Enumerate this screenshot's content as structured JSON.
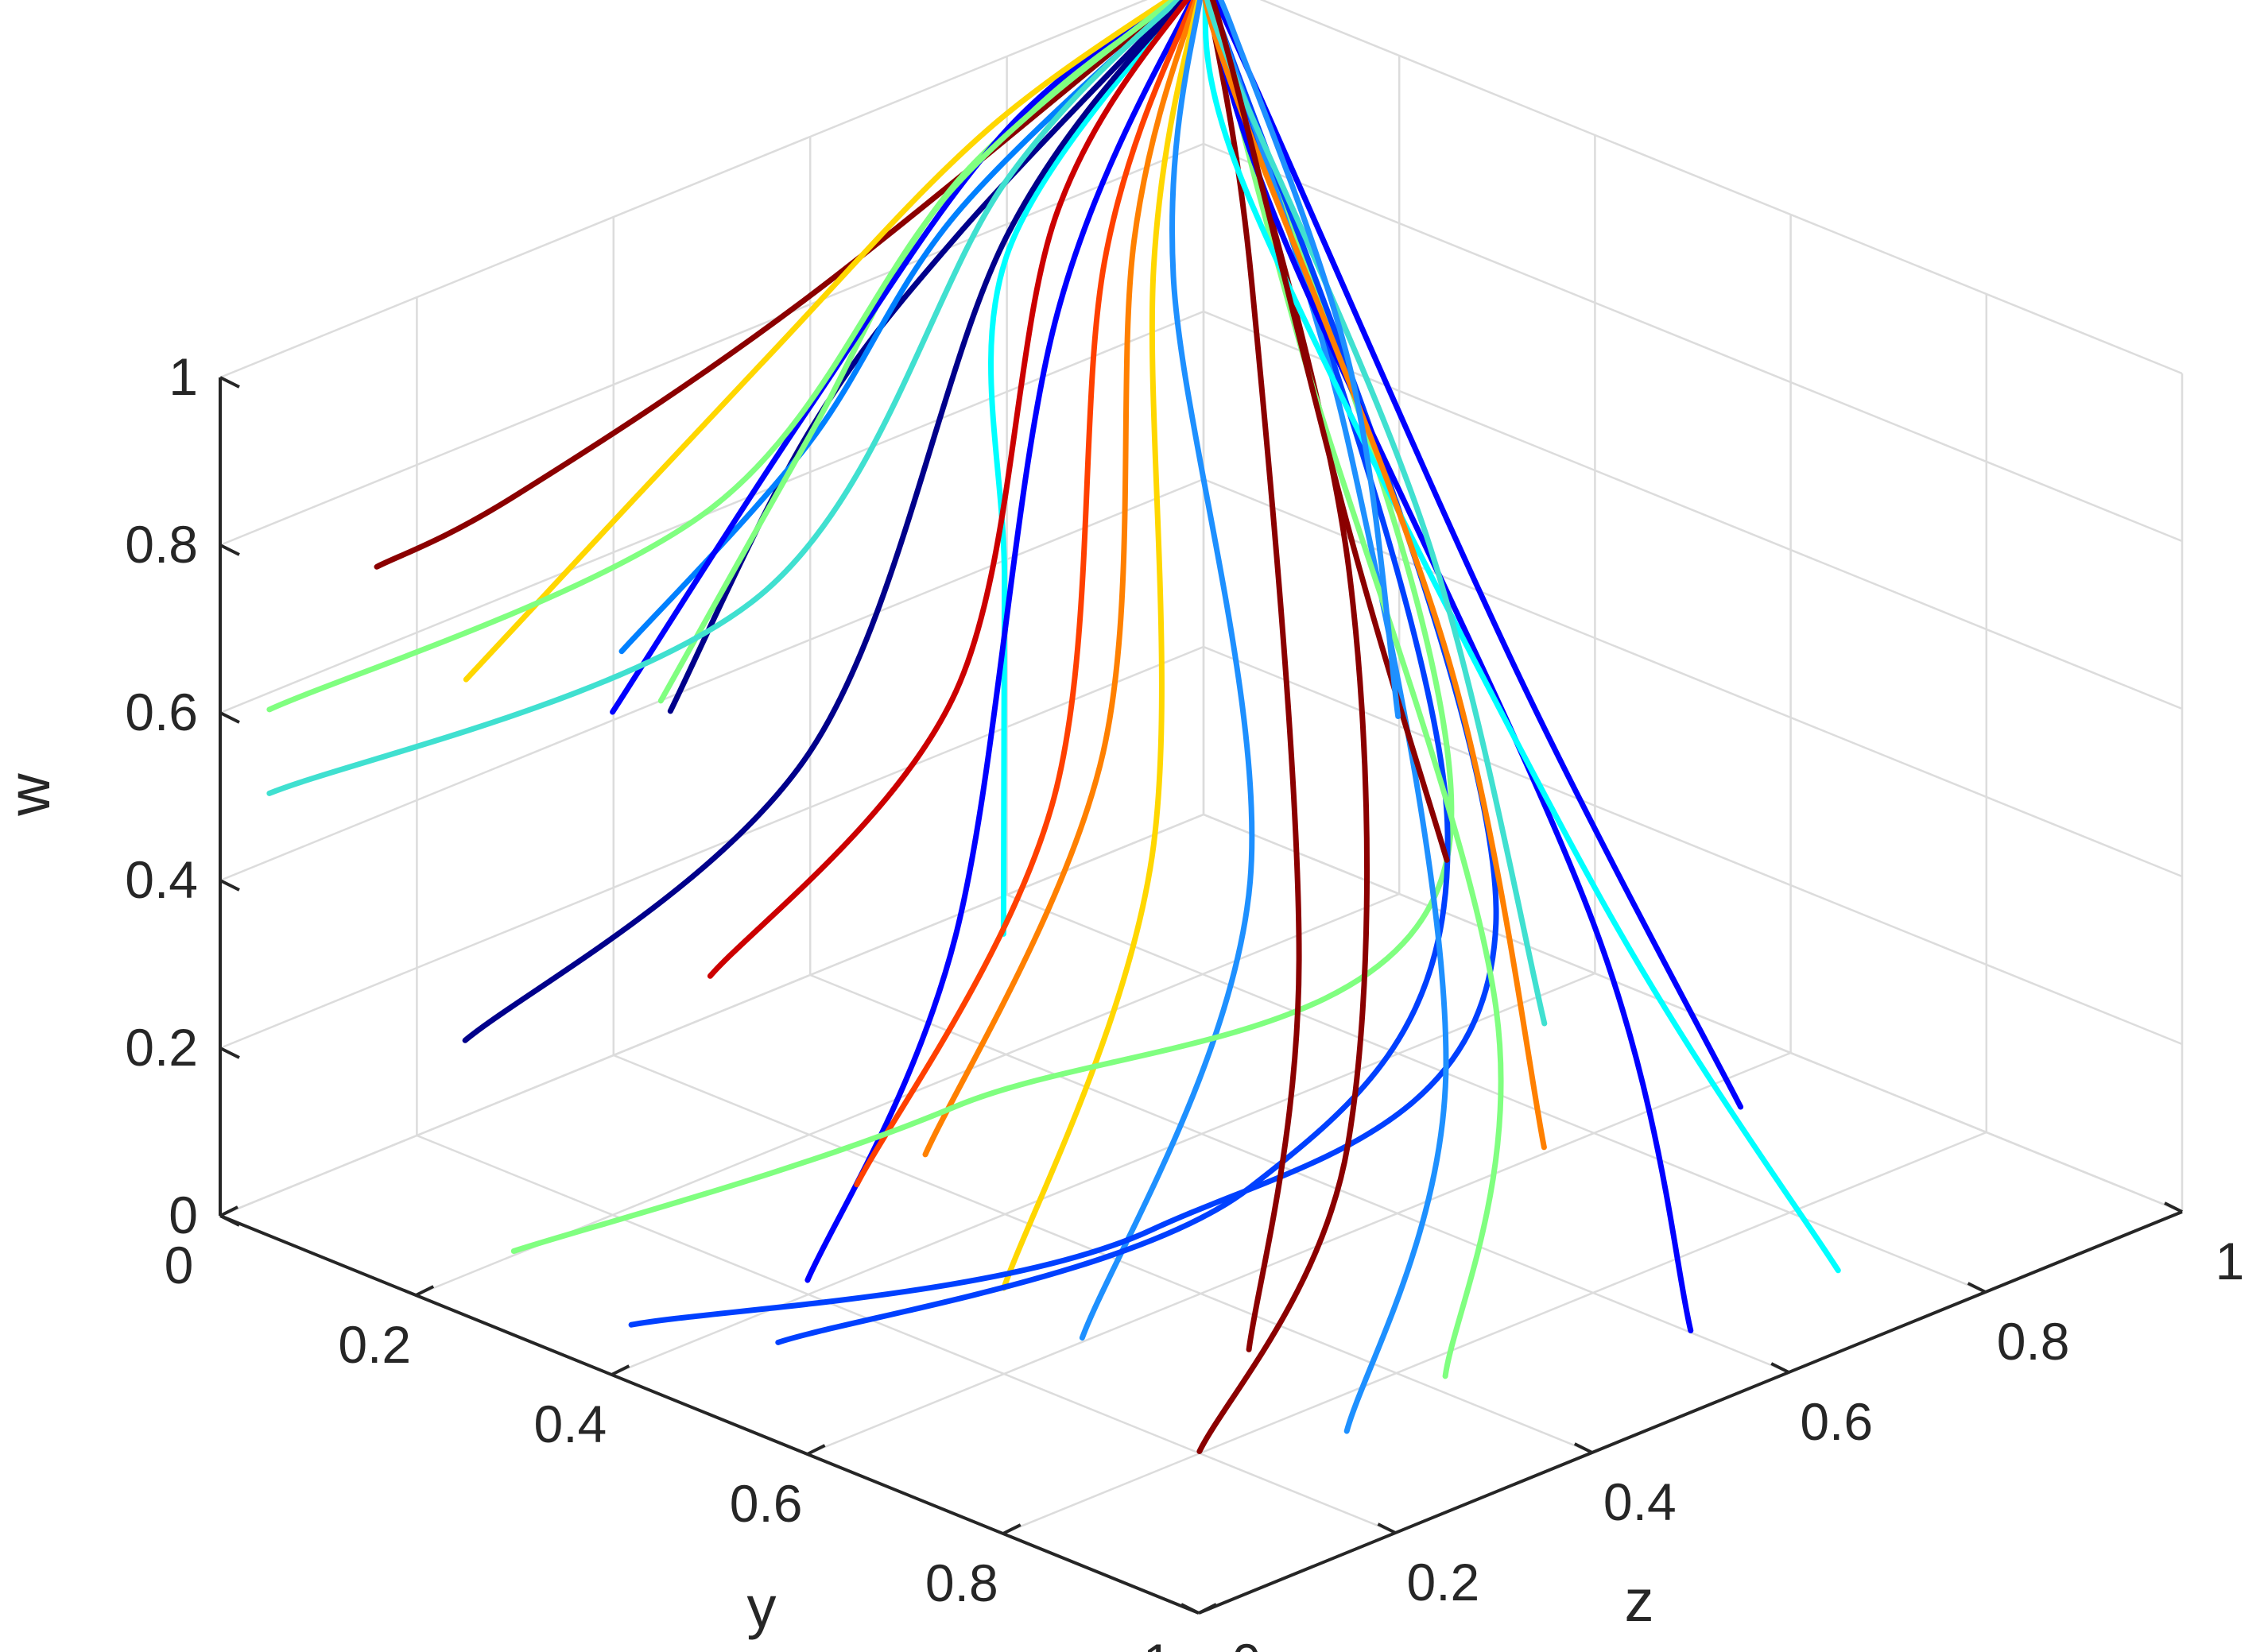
{
  "chart_data": {
    "type": "line",
    "subtype": "3d-trajectories",
    "title": "",
    "xlabel": "y",
    "ylabel": "z",
    "zlabel": "w",
    "xlim": [
      0,
      1
    ],
    "ylim": [
      0,
      1
    ],
    "zlim": [
      0,
      1
    ],
    "grid": true,
    "legend": "none",
    "x_ticks": [
      "0",
      "0.2",
      "0.4",
      "0.6",
      "0.8",
      "1"
    ],
    "y_ticks": [
      "0",
      "0.2",
      "0.4",
      "0.6",
      "0.8",
      "1"
    ],
    "z_ticks": [
      "0",
      "0.2",
      "0.4",
      "0.6",
      "0.8",
      "1"
    ],
    "colormap": "jet",
    "attractor": {
      "y": 0,
      "z": 1,
      "w": 1
    },
    "series": [
      {
        "color": "#8b0000",
        "points": [
          [
            0.16,
            0.0,
            0.85
          ],
          [
            0.3,
            0.0,
            1.0
          ],
          [
            0.2,
            0.4,
            1.0
          ],
          [
            0.0,
            1.0,
            1.0
          ]
        ]
      },
      {
        "color": "#00008b",
        "points": [
          [
            0.46,
            0.0,
            0.82
          ],
          [
            0.35,
            0.25,
            0.98
          ],
          [
            0.2,
            0.55,
            1.0
          ],
          [
            0.0,
            1.0,
            1.0
          ]
        ]
      },
      {
        "color": "#0080ff",
        "points": [
          [
            0.36,
            0.05,
            0.82
          ],
          [
            0.3,
            0.3,
            0.92
          ],
          [
            0.15,
            0.6,
            0.98
          ],
          [
            0.0,
            1.0,
            1.0
          ]
        ]
      },
      {
        "color": "#80ff80",
        "points": [
          [
            0.4,
            0.05,
            0.78
          ],
          [
            0.25,
            0.35,
            0.88
          ],
          [
            0.1,
            0.65,
            0.97
          ],
          [
            0.0,
            1.0,
            1.0
          ]
        ]
      },
      {
        "color": "#00ffff",
        "points": [
          [
            0.7,
            0.1,
            0.62
          ],
          [
            0.5,
            0.3,
            0.85
          ],
          [
            0.2,
            0.6,
            0.95
          ],
          [
            0.0,
            1.0,
            1.0
          ]
        ]
      },
      {
        "color": "#0000ff",
        "points": [
          [
            0.2,
            0.2,
            0.6
          ],
          [
            0.15,
            0.45,
            0.82
          ],
          [
            0.05,
            0.75,
            0.96
          ],
          [
            0.0,
            1.0,
            1.0
          ]
        ]
      },
      {
        "color": "#ffd700",
        "points": [
          [
            0.0,
            0.25,
            0.52
          ],
          [
            0.05,
            0.5,
            0.8
          ],
          [
            0.03,
            0.75,
            0.95
          ],
          [
            0.0,
            1.0,
            1.0
          ]
        ]
      },
      {
        "color": "#80ff80",
        "points": [
          [
            0.0,
            0.05,
            0.58
          ],
          [
            0.1,
            0.4,
            0.7
          ],
          [
            0.05,
            0.7,
            0.92
          ],
          [
            0.0,
            1.0,
            1.0
          ]
        ]
      },
      {
        "color": "#40e0d0",
        "points": [
          [
            0.0,
            0.05,
            0.48
          ],
          [
            0.15,
            0.4,
            0.62
          ],
          [
            0.05,
            0.75,
            0.9
          ],
          [
            0.0,
            1.0,
            1.0
          ]
        ]
      },
      {
        "color": "#00008b",
        "points": [
          [
            0.2,
            0.05,
            0.28
          ],
          [
            0.3,
            0.3,
            0.55
          ],
          [
            0.1,
            0.7,
            0.88
          ],
          [
            0.0,
            1.0,
            1.0
          ]
        ]
      },
      {
        "color": "#0000ff",
        "points": [
          [
            0.55,
            0.05,
            0.16
          ],
          [
            0.5,
            0.25,
            0.45
          ],
          [
            0.2,
            0.65,
            0.85
          ],
          [
            0.0,
            1.0,
            1.0
          ]
        ]
      },
      {
        "color": "#cc0000",
        "points": [
          [
            0.35,
            0.15,
            0.38
          ],
          [
            0.35,
            0.4,
            0.6
          ],
          [
            0.1,
            0.75,
            0.88
          ],
          [
            0.0,
            1.0,
            1.0
          ]
        ]
      },
      {
        "color": "#ff4000",
        "points": [
          [
            0.55,
            0.1,
            0.25
          ],
          [
            0.45,
            0.4,
            0.52
          ],
          [
            0.15,
            0.75,
            0.85
          ],
          [
            0.0,
            1.0,
            1.0
          ]
        ]
      },
      {
        "color": "#ff8000",
        "points": [
          [
            0.6,
            0.12,
            0.3
          ],
          [
            0.45,
            0.45,
            0.55
          ],
          [
            0.15,
            0.78,
            0.86
          ],
          [
            0.0,
            1.0,
            1.0
          ]
        ]
      },
      {
        "color": "#ffd700",
        "points": [
          [
            0.65,
            0.15,
            0.15
          ],
          [
            0.5,
            0.45,
            0.45
          ],
          [
            0.15,
            0.8,
            0.82
          ],
          [
            0.0,
            1.0,
            1.0
          ]
        ]
      },
      {
        "color": "#1e90ff",
        "points": [
          [
            0.7,
            0.18,
            0.1
          ],
          [
            0.55,
            0.5,
            0.42
          ],
          [
            0.15,
            0.82,
            0.8
          ],
          [
            0.0,
            1.0,
            1.0
          ]
        ]
      },
      {
        "color": "#80ff80",
        "points": [
          [
            0.3,
            0.0,
            0.1
          ],
          [
            0.45,
            0.3,
            0.2
          ],
          [
            0.55,
            0.7,
            0.35
          ],
          [
            0.0,
            1.0,
            1.0
          ]
        ]
      },
      {
        "color": "#0040ff",
        "points": [
          [
            0.4,
            0.02,
            0.05
          ],
          [
            0.6,
            0.35,
            0.1
          ],
          [
            0.55,
            0.75,
            0.25
          ],
          [
            0.0,
            1.0,
            1.0
          ]
        ]
      },
      {
        "color": "#0040ff",
        "points": [
          [
            0.55,
            0.02,
            0.1
          ],
          [
            0.65,
            0.4,
            0.15
          ],
          [
            0.45,
            0.8,
            0.3
          ],
          [
            0.0,
            1.0,
            1.0
          ]
        ]
      },
      {
        "color": "#8b0000",
        "points": [
          [
            0.85,
            0.15,
            0.05
          ],
          [
            0.7,
            0.45,
            0.2
          ],
          [
            0.35,
            0.8,
            0.55
          ],
          [
            0.0,
            1.0,
            1.0
          ]
        ]
      },
      {
        "color": "#8b0000",
        "points": [
          [
            0.8,
            0.25,
            0.1
          ],
          [
            0.6,
            0.5,
            0.35
          ],
          [
            0.2,
            0.85,
            0.8
          ],
          [
            0.0,
            1.0,
            1.0
          ]
        ]
      },
      {
        "color": "#1e90ff",
        "points": [
          [
            0.9,
            0.25,
            0.05
          ],
          [
            0.7,
            0.55,
            0.25
          ],
          [
            0.3,
            0.85,
            0.65
          ],
          [
            0.0,
            1.0,
            1.0
          ]
        ]
      },
      {
        "color": "#80ff80",
        "points": [
          [
            0.85,
            0.4,
            0.02
          ],
          [
            0.6,
            0.7,
            0.2
          ],
          [
            0.2,
            0.9,
            0.7
          ],
          [
            0.0,
            1.0,
            1.0
          ]
        ]
      },
      {
        "color": "#0000ff",
        "points": [
          [
            0.95,
            0.55,
            0.05
          ],
          [
            0.55,
            0.85,
            0.2
          ],
          [
            0.1,
            0.98,
            0.75
          ],
          [
            0.0,
            1.0,
            1.0
          ]
        ]
      },
      {
        "color": "#00ffff",
        "points": [
          [
            0.95,
            0.7,
            0.05
          ],
          [
            0.45,
            0.95,
            0.15
          ],
          [
            0.05,
            1.0,
            0.75
          ],
          [
            0.0,
            1.0,
            1.0
          ]
        ]
      },
      {
        "color": "#0000ff",
        "points": [
          [
            0.8,
            0.75,
            0.15
          ],
          [
            0.4,
            0.92,
            0.4
          ],
          [
            0.05,
            1.0,
            0.9
          ],
          [
            0.0,
            1.0,
            1.0
          ]
        ]
      },
      {
        "color": "#ff8000",
        "points": [
          [
            0.75,
            0.6,
            0.15
          ],
          [
            0.4,
            0.85,
            0.45
          ],
          [
            0.05,
            0.98,
            0.9
          ],
          [
            0.0,
            1.0,
            1.0
          ]
        ]
      },
      {
        "color": "#40e0d0",
        "points": [
          [
            0.7,
            0.65,
            0.25
          ],
          [
            0.35,
            0.88,
            0.55
          ],
          [
            0.05,
            0.98,
            0.92
          ],
          [
            0.0,
            1.0,
            1.0
          ]
        ]
      },
      {
        "color": "#8b0000",
        "points": [
          [
            0.55,
            0.7,
            0.35
          ],
          [
            0.3,
            0.85,
            0.55
          ],
          [
            0.05,
            0.98,
            0.92
          ],
          [
            0.0,
            1.0,
            1.0
          ]
        ]
      },
      {
        "color": "#1e90ff",
        "points": [
          [
            0.45,
            0.75,
            0.45
          ],
          [
            0.25,
            0.9,
            0.7
          ],
          [
            0.03,
            1.0,
            0.95
          ],
          [
            0.0,
            1.0,
            1.0
          ]
        ]
      }
    ]
  }
}
